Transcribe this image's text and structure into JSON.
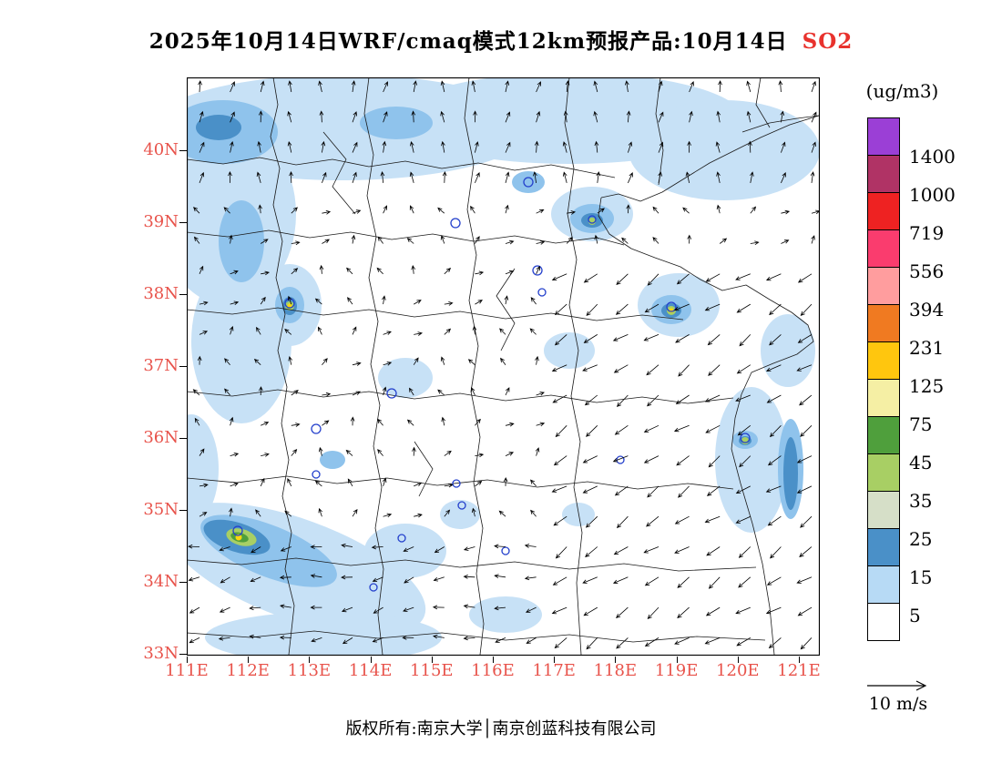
{
  "title": {
    "main": "2025年10月14日WRF/cmaq模式12km预报产品:10月14日",
    "species": "SO2"
  },
  "axes": {
    "lat_labels": [
      "40N",
      "39N",
      "38N",
      "37N",
      "36N",
      "35N",
      "34N",
      "33N"
    ],
    "lon_labels": [
      "111E",
      "112E",
      "113E",
      "114E",
      "115E",
      "116E",
      "117E",
      "118E",
      "119E",
      "120E",
      "121E"
    ]
  },
  "colorbar": {
    "units_label": "(ug/m3)",
    "levels": [
      1400,
      1000,
      719,
      556,
      394,
      231,
      125,
      75,
      45,
      35,
      25,
      15,
      5
    ],
    "segment_colors_top_to_bottom": [
      "#9b3fd6",
      "#b03365",
      "#ee2222",
      "#fa3c6e",
      "#ff9d9e",
      "#f07a21",
      "#ffc60e",
      "#f5efa4",
      "#4f9f3c",
      "#a8cf64",
      "#d6dfc8",
      "#4a90c8",
      "#b7daf5",
      "#ffffff"
    ]
  },
  "wind_legend": {
    "label": "10 m/s"
  },
  "footer": {
    "text": "版权所有:南京大学│南京创蓝科技有限公司"
  },
  "chart_data": {
    "type": "heatmap",
    "title": "2025年10月14日WRF/cmaq模式12km预报产品:10月14日 SO2",
    "variable": "SO2",
    "units": "ug/m3",
    "x_ticks": [
      "111E",
      "112E",
      "113E",
      "114E",
      "115E",
      "116E",
      "117E",
      "118E",
      "119E",
      "120E",
      "121E"
    ],
    "y_ticks": [
      "40N",
      "39N",
      "38N",
      "37N",
      "36N",
      "35N",
      "34N",
      "33N"
    ],
    "x_range": [
      111,
      121.4
    ],
    "y_range": [
      33,
      41
    ],
    "colorbar_levels": [
      5,
      15,
      25,
      35,
      45,
      75,
      125,
      231,
      394,
      556,
      719,
      1000,
      1400
    ],
    "colorbar_colors_low_to_high": [
      "#ffffff",
      "#b7daf5",
      "#4a90c8",
      "#d6dfc8",
      "#a8cf64",
      "#4f9f3c",
      "#f5efa4",
      "#ffc60e",
      "#f07a21",
      "#ff9d9e",
      "#fa3c6e",
      "#ee2222",
      "#b03365",
      "#9b3fd6"
    ],
    "wind_reference": "10 m/s",
    "field_summary": [
      "Broad 5-15 ug/m3 band across northern rows (39N-41N)",
      "Plume band 15-35 ug/m3 along 34.6-35N from 111E to 114E with peak 45-231 near 111.8E,34.7N",
      "Mostly below 5 ug/m3 over central and southern interior",
      "Coastal/offshore band 15-35 ug/m3 near 121E between 35.5N-37N",
      "Winds northerly over the north, strong northeasterly over the sea in the southeast"
    ],
    "hotspots": [
      {
        "lon": 111.8,
        "lat": 34.7,
        "approx_max_ugm3": "75-231"
      },
      {
        "lon": 112.7,
        "lat": 37.85,
        "approx_max_ugm3": "45-125"
      },
      {
        "lon": 118.9,
        "lat": 37.85,
        "approx_max_ugm3": "45-125"
      },
      {
        "lon": 120.2,
        "lat": 36.1,
        "approx_max_ugm3": "35-75"
      },
      {
        "lon": 117.6,
        "lat": 39.2,
        "approx_max_ugm3": "25-45"
      }
    ]
  }
}
